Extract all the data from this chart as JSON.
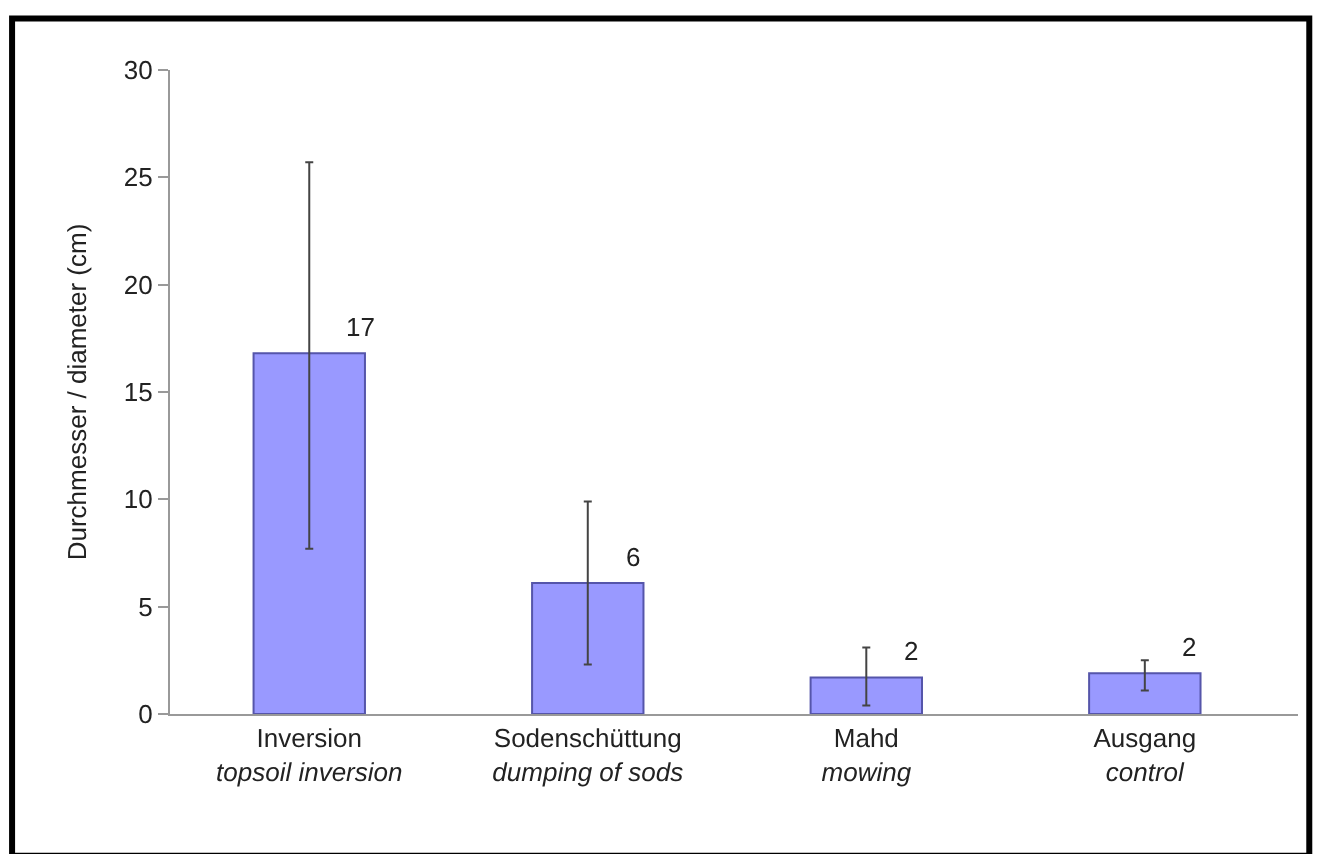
{
  "chart_data": {
    "type": "bar",
    "categories": [
      "Inversion\ntopsoil inversion",
      "Sodenschüttung\ndumping of sods",
      "Mahd\nmowing",
      "Ausgang\ncontrol"
    ],
    "values": [
      16.8,
      6.1,
      1.7,
      1.9
    ],
    "errors": [
      [
        7.7,
        25.7
      ],
      [
        2.3,
        9.9
      ],
      [
        0.4,
        3.1
      ],
      [
        1.1,
        2.5
      ]
    ],
    "value_labels": [
      "17",
      "6",
      "2",
      "2"
    ],
    "color": "#9999ff",
    "ylabel": "Durchmesser / diameter (cm)",
    "ylim": [
      0,
      30
    ],
    "yticks": [
      0,
      5,
      10,
      15,
      20,
      25,
      30
    ],
    "legend": false
  }
}
